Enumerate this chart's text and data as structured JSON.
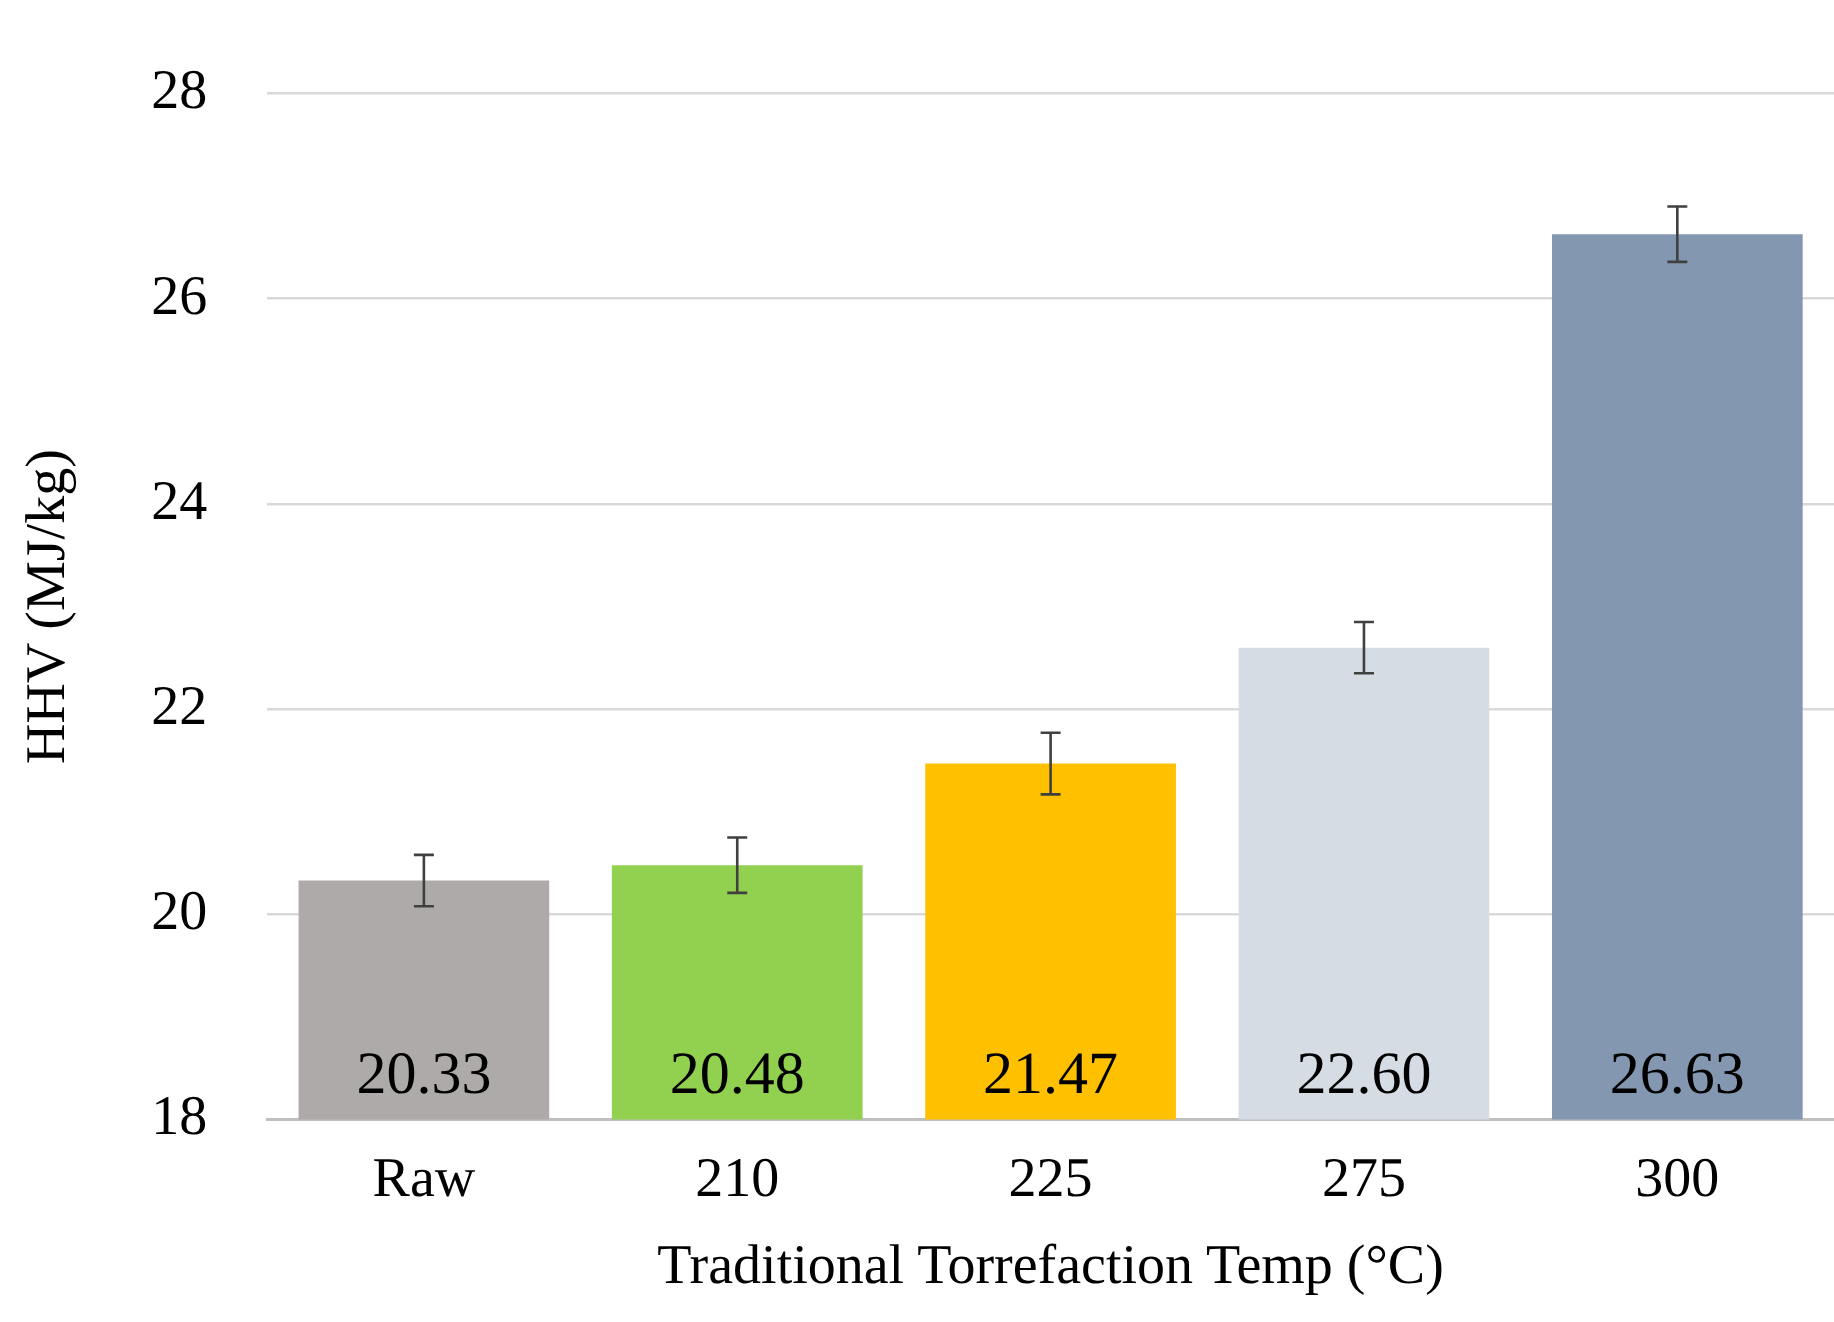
{
  "chart_data": {
    "type": "bar",
    "xlabel": "Traditional Torrefaction Temp (°C)",
    "ylabel": "HHV (MJ/kg)",
    "categories": [
      "Raw",
      "210",
      "225",
      "275",
      "300"
    ],
    "values": [
      20.33,
      20.48,
      21.47,
      22.6,
      26.63
    ],
    "value_labels": [
      "20.33",
      "20.48",
      "21.47",
      "22.60",
      "26.63"
    ],
    "errors": [
      0.25,
      0.27,
      0.3,
      0.25,
      0.27
    ],
    "colors": [
      "#aeaaaa",
      "#92d050",
      "#ffc000",
      "#d6dce4",
      "#8497b0"
    ],
    "ylim": [
      18,
      28
    ],
    "yticks": [
      18,
      20,
      22,
      24,
      26,
      28
    ],
    "grid": "y",
    "legend": false
  }
}
